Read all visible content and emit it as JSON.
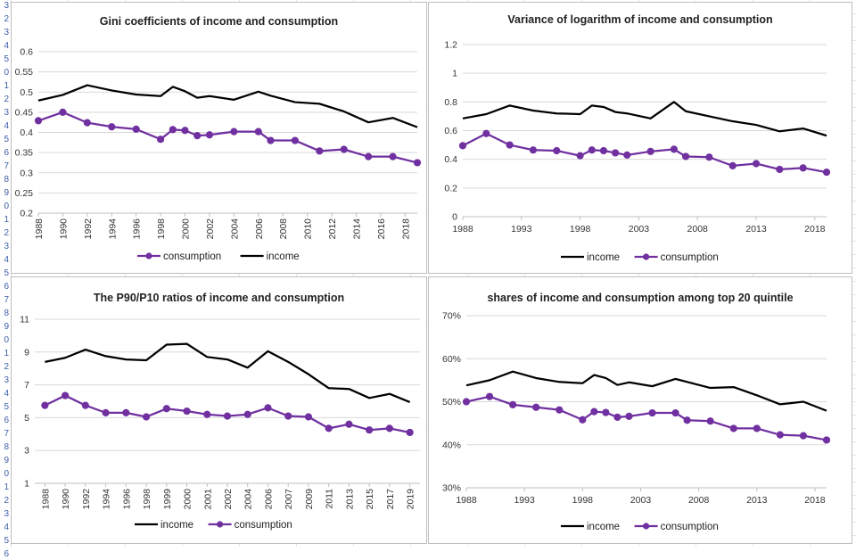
{
  "colors": {
    "income": "#000000",
    "consumption": "#7030a0",
    "gridline": "#d9d9d9",
    "axis": "#bfbfbf"
  },
  "row_headers": {
    "left_edge_glyphs": [
      "3",
      "2",
      "3",
      "4",
      "5",
      "0",
      "1",
      "2",
      "3",
      "4",
      "5",
      "6",
      "7",
      "8",
      "9",
      "0",
      "1",
      "2",
      "3",
      "4",
      "5",
      "6",
      "7",
      "8",
      "9",
      "0",
      "1",
      "2",
      "3",
      "4",
      "5",
      "6",
      "7",
      "8",
      "9",
      "0",
      "1",
      "2",
      "3",
      "4",
      "5",
      "6"
    ]
  },
  "chart_data": [
    {
      "id": "gini",
      "type": "line",
      "title": "Gini coefficients of income and consumption",
      "xlabel": "",
      "ylabel": "",
      "ylim": [
        0.2,
        0.6
      ],
      "yticks": [
        "0.2",
        "0.25",
        "0.3",
        "0.35",
        "0.4",
        "0.45",
        "0.5",
        "0.55",
        "0.6"
      ],
      "xticks": [
        "1988",
        "1990",
        "1992",
        "1994",
        "1996",
        "1998",
        "2000",
        "2002",
        "2004",
        "2006",
        "2008",
        "2010",
        "2012",
        "2014",
        "2016",
        "2018"
      ],
      "xtick_rotation": "vertical",
      "xlim": [
        1988,
        2019
      ],
      "legend": [
        "consumption",
        "income"
      ],
      "legend_position": "bottom",
      "series": [
        {
          "name": "consumption",
          "markers": true,
          "x": [
            1988,
            1990,
            1992,
            1994,
            1996,
            1998,
            1999,
            2000,
            2001,
            2002,
            2004,
            2006,
            2007,
            2009,
            2011,
            2013,
            2015,
            2017,
            2019
          ],
          "values": [
            0.429,
            0.45,
            0.424,
            0.414,
            0.408,
            0.383,
            0.407,
            0.405,
            0.392,
            0.394,
            0.402,
            0.402,
            0.38,
            0.38,
            0.354,
            0.358,
            0.34,
            0.34,
            0.325
          ]
        },
        {
          "name": "income",
          "markers": false,
          "x": [
            1988,
            1990,
            1992,
            1994,
            1996,
            1998,
            1999,
            2000,
            2001,
            2002,
            2004,
            2006,
            2007,
            2009,
            2011,
            2013,
            2015,
            2017,
            2019
          ],
          "values": [
            0.479,
            0.493,
            0.517,
            0.504,
            0.494,
            0.49,
            0.513,
            0.502,
            0.486,
            0.49,
            0.481,
            0.501,
            0.491,
            0.475,
            0.471,
            0.452,
            0.425,
            0.436,
            0.413
          ]
        }
      ]
    },
    {
      "id": "variance",
      "type": "line",
      "title": "Variance of logarithm of income and consumption",
      "xlabel": "",
      "ylabel": "",
      "ylim": [
        0,
        1.2
      ],
      "yticks": [
        "0",
        "0.2",
        "0.4",
        "0.6",
        "0.8",
        "1",
        "1.2"
      ],
      "xticks": [
        "1988",
        "1993",
        "1998",
        "2003",
        "2008",
        "2013",
        "2018"
      ],
      "xtick_rotation": "horizontal",
      "xlim": [
        1988,
        2019
      ],
      "legend": [
        "income",
        "consumption"
      ],
      "legend_position": "bottom",
      "series": [
        {
          "name": "income",
          "markers": false,
          "x": [
            1988,
            1990,
            1992,
            1994,
            1996,
            1998,
            1999,
            2000,
            2001,
            2002,
            2004,
            2006,
            2007,
            2009,
            2011,
            2013,
            2015,
            2017,
            2019
          ],
          "values": [
            0.685,
            0.715,
            0.775,
            0.74,
            0.72,
            0.715,
            0.775,
            0.765,
            0.73,
            0.72,
            0.685,
            0.8,
            0.735,
            0.7,
            0.665,
            0.64,
            0.595,
            0.615,
            0.565
          ]
        },
        {
          "name": "consumption",
          "markers": true,
          "x": [
            1988,
            1990,
            1992,
            1994,
            1996,
            1998,
            1999,
            2000,
            2001,
            2002,
            2004,
            2006,
            2007,
            2009,
            2011,
            2013,
            2015,
            2017,
            2019
          ],
          "values": [
            0.495,
            0.58,
            0.5,
            0.465,
            0.46,
            0.425,
            0.465,
            0.46,
            0.445,
            0.43,
            0.455,
            0.47,
            0.42,
            0.415,
            0.355,
            0.37,
            0.33,
            0.34,
            0.31
          ]
        }
      ]
    },
    {
      "id": "p90p10",
      "type": "line",
      "title": "The P90/P10 ratios of income and consumption",
      "xlabel": "",
      "ylabel": "",
      "ylim": [
        1,
        11
      ],
      "yticks": [
        "1",
        "3",
        "5",
        "7",
        "9",
        "11"
      ],
      "xticks": [
        "1988",
        "1990",
        "1992",
        "1994",
        "1996",
        "1998",
        "1999",
        "2000",
        "2001",
        "2002",
        "2004",
        "2006",
        "2007",
        "2009",
        "2011",
        "2013",
        "2015",
        "2017",
        "2019"
      ],
      "xtick_rotation": "vertical",
      "xlim": [
        0,
        18
      ],
      "categorical": true,
      "legend": [
        "income",
        "consumption"
      ],
      "legend_position": "bottom",
      "series": [
        {
          "name": "income",
          "markers": false,
          "values": [
            8.4,
            8.65,
            9.15,
            8.75,
            8.55,
            8.5,
            9.45,
            9.5,
            8.7,
            8.55,
            8.05,
            9.05,
            8.4,
            7.65,
            6.8,
            6.75,
            6.2,
            6.45,
            5.95
          ]
        },
        {
          "name": "consumption",
          "markers": true,
          "values": [
            5.75,
            6.35,
            5.75,
            5.3,
            5.3,
            5.05,
            5.55,
            5.4,
            5.2,
            5.1,
            5.2,
            5.6,
            5.1,
            5.05,
            4.35,
            4.6,
            4.25,
            4.35,
            4.1
          ]
        }
      ]
    },
    {
      "id": "shares",
      "type": "line",
      "title": "shares of income and consumption among top 20 quintile",
      "xlabel": "",
      "ylabel": "",
      "ylim": [
        30,
        70
      ],
      "yticks": [
        "30%",
        "40%",
        "50%",
        "60%",
        "70%"
      ],
      "xticks": [
        "1988",
        "1993",
        "1998",
        "2003",
        "2008",
        "2013",
        "2018"
      ],
      "xtick_rotation": "horizontal",
      "xlim": [
        1988,
        2019
      ],
      "legend": [
        "income",
        "consumption"
      ],
      "legend_position": "bottom",
      "series": [
        {
          "name": "income",
          "markers": false,
          "x": [
            1988,
            1990,
            1992,
            1994,
            1996,
            1998,
            1999,
            2000,
            2001,
            2002,
            2004,
            2006,
            2007,
            2009,
            2011,
            2013,
            2015,
            2017,
            2019
          ],
          "values": [
            53.8,
            55.0,
            57.0,
            55.5,
            54.6,
            54.3,
            56.2,
            55.5,
            53.9,
            54.5,
            53.6,
            55.3,
            54.6,
            53.2,
            53.4,
            51.5,
            49.4,
            50.0,
            47.9
          ]
        },
        {
          "name": "consumption",
          "markers": true,
          "x": [
            1988,
            1990,
            1992,
            1994,
            1996,
            1998,
            1999,
            2000,
            2001,
            2002,
            2004,
            2006,
            2007,
            2009,
            2011,
            2013,
            2015,
            2017,
            2019
          ],
          "values": [
            50.0,
            51.2,
            49.3,
            48.7,
            48.1,
            45.8,
            47.7,
            47.5,
            46.4,
            46.6,
            47.4,
            47.4,
            45.7,
            45.5,
            43.8,
            43.8,
            42.3,
            42.1,
            41.1
          ]
        }
      ]
    }
  ]
}
